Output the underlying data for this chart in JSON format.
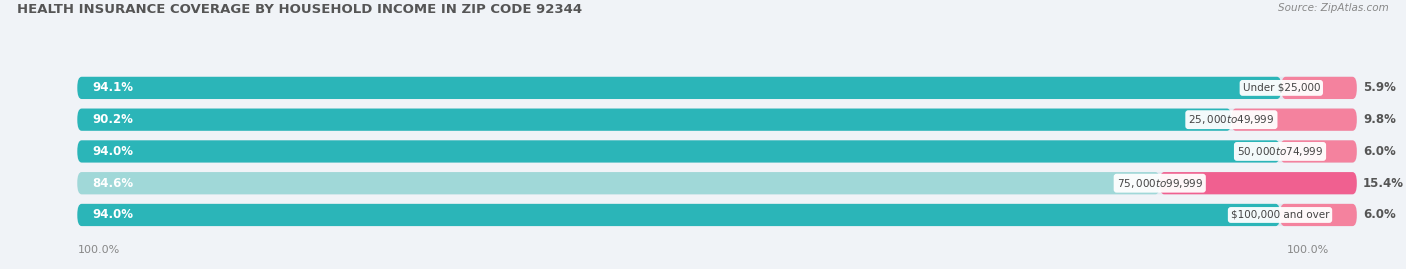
{
  "title": "HEALTH INSURANCE COVERAGE BY HOUSEHOLD INCOME IN ZIP CODE 92344",
  "source": "Source: ZipAtlas.com",
  "categories": [
    "Under $25,000",
    "$25,000 to $49,999",
    "$50,000 to $74,999",
    "$75,000 to $99,999",
    "$100,000 and over"
  ],
  "with_coverage": [
    94.1,
    90.2,
    94.0,
    84.6,
    94.0
  ],
  "without_coverage": [
    5.9,
    9.8,
    6.0,
    15.4,
    6.0
  ],
  "color_with": [
    "#2bb5b8",
    "#2bb5b8",
    "#2bb5b8",
    "#a0d8d8",
    "#2bb5b8"
  ],
  "color_without": [
    "#f4829e",
    "#f4829e",
    "#f4829e",
    "#f06090",
    "#f4829e"
  ],
  "color_with_legend": "#2bb5b8",
  "color_without_legend": "#f4829e",
  "bg_color": "#f0f3f7",
  "bar_bg": "#e2e8f0",
  "title_fontsize": 9.5,
  "source_fontsize": 7.5,
  "pct_label_fontsize": 8.5,
  "category_fontsize": 7.5,
  "legend_fontsize": 8.5,
  "bottom_label": "100.0%",
  "bar_height": 0.7,
  "n_rows": 5
}
